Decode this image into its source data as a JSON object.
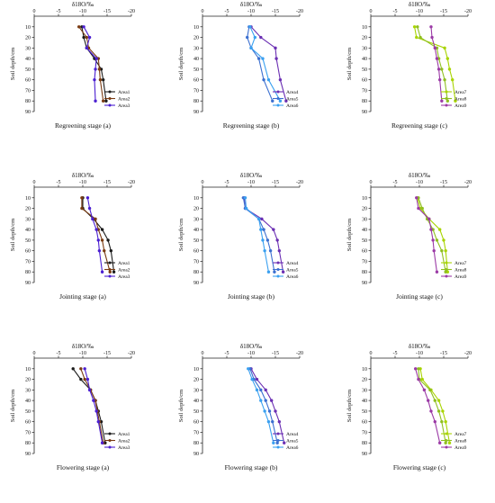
{
  "figure": {
    "axis_title_top": "δ18O/‰",
    "ylabel": "Soil depth/cm"
  },
  "chart_data": [
    {
      "type": "line",
      "caption": "Regreening stage (a)",
      "xlabel": "δ18O/‰",
      "ylabel": "Soil depth/cm",
      "xlim": [
        0,
        -20
      ],
      "xticks": [
        0,
        -5,
        -10,
        -15,
        -20
      ],
      "ylim": [
        0,
        90
      ],
      "yticks": [
        10,
        20,
        30,
        40,
        50,
        60,
        70,
        80,
        90
      ],
      "series": [
        {
          "name": "Area1",
          "color": "#1a1a1a",
          "marker": "circle",
          "x": [
            -9.8,
            -10.2,
            -10.8,
            -12.4,
            -13.8,
            -14.2,
            -14.8
          ],
          "y": [
            10,
            20,
            30,
            40,
            50,
            60,
            80
          ]
        },
        {
          "name": "Area2",
          "color": "#7a3b12",
          "marker": "circle",
          "x": [
            -9.2,
            -10.8,
            -11.2,
            -13.2,
            -13.4,
            -13.6,
            -14.2
          ],
          "y": [
            10,
            20,
            30,
            40,
            50,
            60,
            80
          ]
        },
        {
          "name": "Area3",
          "color": "#4b1fd1",
          "marker": "circle",
          "x": [
            -10.2,
            -11.4,
            -10.8,
            -12.8,
            -12.6,
            -12.4,
            -12.6
          ],
          "y": [
            10,
            20,
            30,
            40,
            50,
            60,
            80
          ]
        }
      ]
    },
    {
      "type": "line",
      "caption": "Regreening stage (b)",
      "xlabel": "δ18O/‰",
      "ylabel": "Soil depth/cm",
      "xlim": [
        0,
        -20
      ],
      "xticks": [
        0,
        -5,
        -10,
        -15,
        -20
      ],
      "ylim": [
        0,
        90
      ],
      "yticks": [
        10,
        20,
        30,
        40,
        50,
        60,
        70,
        80,
        90
      ],
      "series": [
        {
          "name": "Area4",
          "color": "#6b2fb3",
          "marker": "circle",
          "x": [
            -10.0,
            -12.0,
            -15.0,
            -15.2,
            -16.0,
            -17.2
          ],
          "y": [
            10,
            20,
            30,
            40,
            60,
            80
          ]
        },
        {
          "name": "Area5",
          "color": "#3b6fd0",
          "marker": "circle",
          "x": [
            -9.6,
            -9.2,
            -10.0,
            -11.6,
            -12.6,
            -14.4
          ],
          "y": [
            10,
            20,
            30,
            40,
            60,
            80
          ]
        },
        {
          "name": "Area6",
          "color": "#3aa0f0",
          "marker": "circle",
          "x": [
            -9.8,
            -10.8,
            -10.0,
            -12.4,
            -13.6,
            -16.0
          ],
          "y": [
            10,
            20,
            30,
            40,
            60,
            80
          ]
        }
      ]
    },
    {
      "type": "line",
      "caption": "Regreening stage (c)",
      "xlabel": "δ18O/‰",
      "ylabel": "Soil depth/cm",
      "xlim": [
        0,
        -20
      ],
      "xticks": [
        0,
        -5,
        -10,
        -15,
        -20
      ],
      "ylim": [
        0,
        90
      ],
      "yticks": [
        10,
        20,
        30,
        40,
        50,
        60,
        70,
        80,
        90
      ],
      "series": [
        {
          "name": "Area7",
          "color": "#a8d400",
          "marker": "circle",
          "x": [
            -9.0,
            -9.4,
            -15.2,
            -15.8,
            -16.2,
            -16.8,
            -17.4
          ],
          "y": [
            10,
            20,
            30,
            40,
            50,
            60,
            80
          ]
        },
        {
          "name": "Area8",
          "color": "#8fbf20",
          "marker": "circle",
          "x": [
            -9.6,
            -10.2,
            -13.6,
            -14.0,
            -14.6,
            -15.2,
            -15.8
          ],
          "y": [
            10,
            20,
            30,
            40,
            50,
            60,
            80
          ]
        },
        {
          "name": "Area9",
          "color": "#9b3aa6",
          "marker": "circle",
          "x": [
            -12.4,
            -12.6,
            -13.2,
            -13.6,
            -14.0,
            -14.2,
            -14.6
          ],
          "y": [
            10,
            20,
            30,
            40,
            50,
            60,
            80
          ]
        }
      ]
    },
    {
      "type": "line",
      "caption": "Jointing stage (a)",
      "xlabel": "δ18O/‰",
      "ylabel": "Soil depth/cm",
      "xlim": [
        0,
        -20
      ],
      "xticks": [
        0,
        -5,
        -10,
        -15,
        -20
      ],
      "ylim": [
        0,
        90
      ],
      "yticks": [
        10,
        20,
        30,
        40,
        50,
        60,
        70,
        80,
        90
      ],
      "series": [
        {
          "name": "Area1",
          "color": "#1a1a1a",
          "marker": "circle",
          "x": [
            -10.0,
            -10.0,
            -12.2,
            -14.0,
            -15.2,
            -15.8,
            -16.4
          ],
          "y": [
            10,
            20,
            30,
            40,
            50,
            60,
            80
          ]
        },
        {
          "name": "Area2",
          "color": "#7a3b12",
          "marker": "circle",
          "x": [
            -9.8,
            -9.8,
            -12.6,
            -13.2,
            -14.0,
            -14.4,
            -15.6
          ],
          "y": [
            10,
            20,
            30,
            40,
            50,
            60,
            80
          ]
        },
        {
          "name": "Area3",
          "color": "#4b1fd1",
          "marker": "circle",
          "x": [
            -11.0,
            -11.4,
            -12.0,
            -12.8,
            -13.2,
            -13.4,
            -14.0
          ],
          "y": [
            10,
            20,
            30,
            40,
            50,
            60,
            80
          ]
        }
      ]
    },
    {
      "type": "line",
      "caption": "Jointing stage (b)",
      "xlabel": "δ18O/‰",
      "ylabel": "Soil depth/cm",
      "xlim": [
        0,
        -20
      ],
      "xticks": [
        0,
        -5,
        -10,
        -15,
        -20
      ],
      "ylim": [
        0,
        90
      ],
      "yticks": [
        10,
        20,
        30,
        40,
        50,
        60,
        70,
        80,
        90
      ],
      "series": [
        {
          "name": "Area4",
          "color": "#6b2fb3",
          "marker": "circle",
          "x": [
            -8.6,
            -8.8,
            -12.2,
            -14.6,
            -15.4,
            -15.8,
            -16.6
          ],
          "y": [
            10,
            20,
            30,
            40,
            50,
            60,
            80
          ]
        },
        {
          "name": "Area5",
          "color": "#3b6fd0",
          "marker": "circle",
          "x": [
            -8.4,
            -8.8,
            -11.6,
            -12.6,
            -13.4,
            -14.0,
            -14.8
          ],
          "y": [
            10,
            20,
            30,
            40,
            50,
            60,
            80
          ]
        },
        {
          "name": "Area6",
          "color": "#3aa0f0",
          "marker": "circle",
          "x": [
            -8.8,
            -9.0,
            -11.6,
            -12.0,
            -12.4,
            -12.8,
            -13.6
          ],
          "y": [
            10,
            20,
            30,
            40,
            50,
            60,
            80
          ]
        }
      ]
    },
    {
      "type": "line",
      "caption": "Jointing stage (c)",
      "xlabel": "δ18O/‰",
      "ylabel": "Soil depth/cm",
      "xlim": [
        0,
        -20
      ],
      "xticks": [
        0,
        -5,
        -10,
        -15,
        -20
      ],
      "ylim": [
        0,
        90
      ],
      "yticks": [
        10,
        20,
        30,
        40,
        50,
        60,
        70,
        80,
        90
      ],
      "series": [
        {
          "name": "Area7",
          "color": "#a8d400",
          "marker": "circle",
          "x": [
            -9.6,
            -10.2,
            -12.0,
            -14.2,
            -15.0,
            -15.4,
            -15.8
          ],
          "y": [
            10,
            20,
            30,
            40,
            50,
            60,
            80
          ]
        },
        {
          "name": "Area8",
          "color": "#8fbf20",
          "marker": "circle",
          "x": [
            -9.8,
            -10.6,
            -11.6,
            -12.8,
            -13.6,
            -14.6,
            -15.4
          ],
          "y": [
            10,
            20,
            30,
            40,
            50,
            60,
            80
          ]
        },
        {
          "name": "Area9",
          "color": "#9b3aa6",
          "marker": "circle",
          "x": [
            -9.4,
            -9.8,
            -12.0,
            -12.4,
            -12.8,
            -13.0,
            -13.6
          ],
          "y": [
            10,
            20,
            30,
            40,
            50,
            60,
            80
          ]
        }
      ]
    },
    {
      "type": "line",
      "caption": "Flowering stage (a)",
      "xlabel": "δ18O/‰",
      "ylabel": "Soil depth/cm",
      "xlim": [
        0,
        -20
      ],
      "xticks": [
        0,
        -5,
        -10,
        -15,
        -20
      ],
      "ylim": [
        0,
        90
      ],
      "yticks": [
        10,
        20,
        30,
        40,
        50,
        60,
        70,
        80,
        90
      ],
      "series": [
        {
          "name": "Area1",
          "color": "#1a1a1a",
          "marker": "circle",
          "x": [
            -8.0,
            -9.6,
            -11.6,
            -12.6,
            -13.2,
            -13.8,
            -14.6
          ],
          "y": [
            10,
            20,
            30,
            40,
            50,
            60,
            80
          ]
        },
        {
          "name": "Area2",
          "color": "#7a3b12",
          "marker": "circle",
          "x": [
            -9.6,
            -10.4,
            -11.6,
            -12.6,
            -13.0,
            -13.4,
            -14.2
          ],
          "y": [
            10,
            20,
            30,
            40,
            50,
            60,
            80
          ]
        },
        {
          "name": "Area3",
          "color": "#4b1fd1",
          "marker": "circle",
          "x": [
            -10.4,
            -11.0,
            -11.4,
            -12.2,
            -12.8,
            -13.2,
            -14.0
          ],
          "y": [
            10,
            20,
            30,
            40,
            50,
            60,
            80
          ]
        }
      ]
    },
    {
      "type": "line",
      "caption": "Flowering stage (b)",
      "xlabel": "δ18O/‰",
      "ylabel": "Soil depth/cm",
      "xlim": [
        0,
        -20
      ],
      "xticks": [
        0,
        -5,
        -10,
        -15,
        -20
      ],
      "ylim": [
        0,
        90
      ],
      "yticks": [
        10,
        20,
        30,
        40,
        50,
        60,
        70,
        80,
        90
      ],
      "series": [
        {
          "name": "Area4",
          "color": "#6b2fb3",
          "marker": "circle",
          "x": [
            -10.0,
            -11.2,
            -13.0,
            -14.2,
            -15.0,
            -15.8,
            -16.8
          ],
          "y": [
            10,
            20,
            30,
            40,
            50,
            60,
            80
          ]
        },
        {
          "name": "Area5",
          "color": "#3b6fd0",
          "marker": "circle",
          "x": [
            -9.8,
            -10.6,
            -12.0,
            -13.0,
            -13.8,
            -14.4,
            -15.4
          ],
          "y": [
            10,
            20,
            30,
            40,
            50,
            60,
            80
          ]
        },
        {
          "name": "Area6",
          "color": "#3aa0f0",
          "marker": "circle",
          "x": [
            -9.4,
            -10.2,
            -11.2,
            -12.0,
            -12.8,
            -13.6,
            -14.6
          ],
          "y": [
            10,
            20,
            30,
            40,
            50,
            60,
            80
          ]
        }
      ]
    },
    {
      "type": "line",
      "caption": "Flowering stage (c)",
      "xlabel": "δ18O/‰",
      "ylabel": "Soil depth/cm",
      "xlim": [
        0,
        -20
      ],
      "xticks": [
        0,
        -5,
        -10,
        -15,
        -20
      ],
      "ylim": [
        0,
        90
      ],
      "yticks": [
        10,
        20,
        30,
        40,
        50,
        60,
        70,
        80,
        90
      ],
      "series": [
        {
          "name": "Area7",
          "color": "#a8d400",
          "marker": "circle",
          "x": [
            -10.2,
            -10.6,
            -12.4,
            -14.0,
            -14.8,
            -15.4,
            -16.2
          ],
          "y": [
            10,
            20,
            30,
            40,
            50,
            60,
            80
          ]
        },
        {
          "name": "Area8",
          "color": "#8fbf20",
          "marker": "circle",
          "x": [
            -9.8,
            -10.0,
            -12.2,
            -13.2,
            -14.0,
            -14.6,
            -15.4
          ],
          "y": [
            10,
            20,
            30,
            40,
            50,
            60,
            80
          ]
        },
        {
          "name": "Area9",
          "color": "#9b3aa6",
          "marker": "circle",
          "x": [
            -9.2,
            -9.8,
            -11.0,
            -11.8,
            -12.4,
            -13.2,
            -14.2
          ],
          "y": [
            10,
            20,
            30,
            40,
            50,
            60,
            80
          ]
        }
      ]
    }
  ]
}
